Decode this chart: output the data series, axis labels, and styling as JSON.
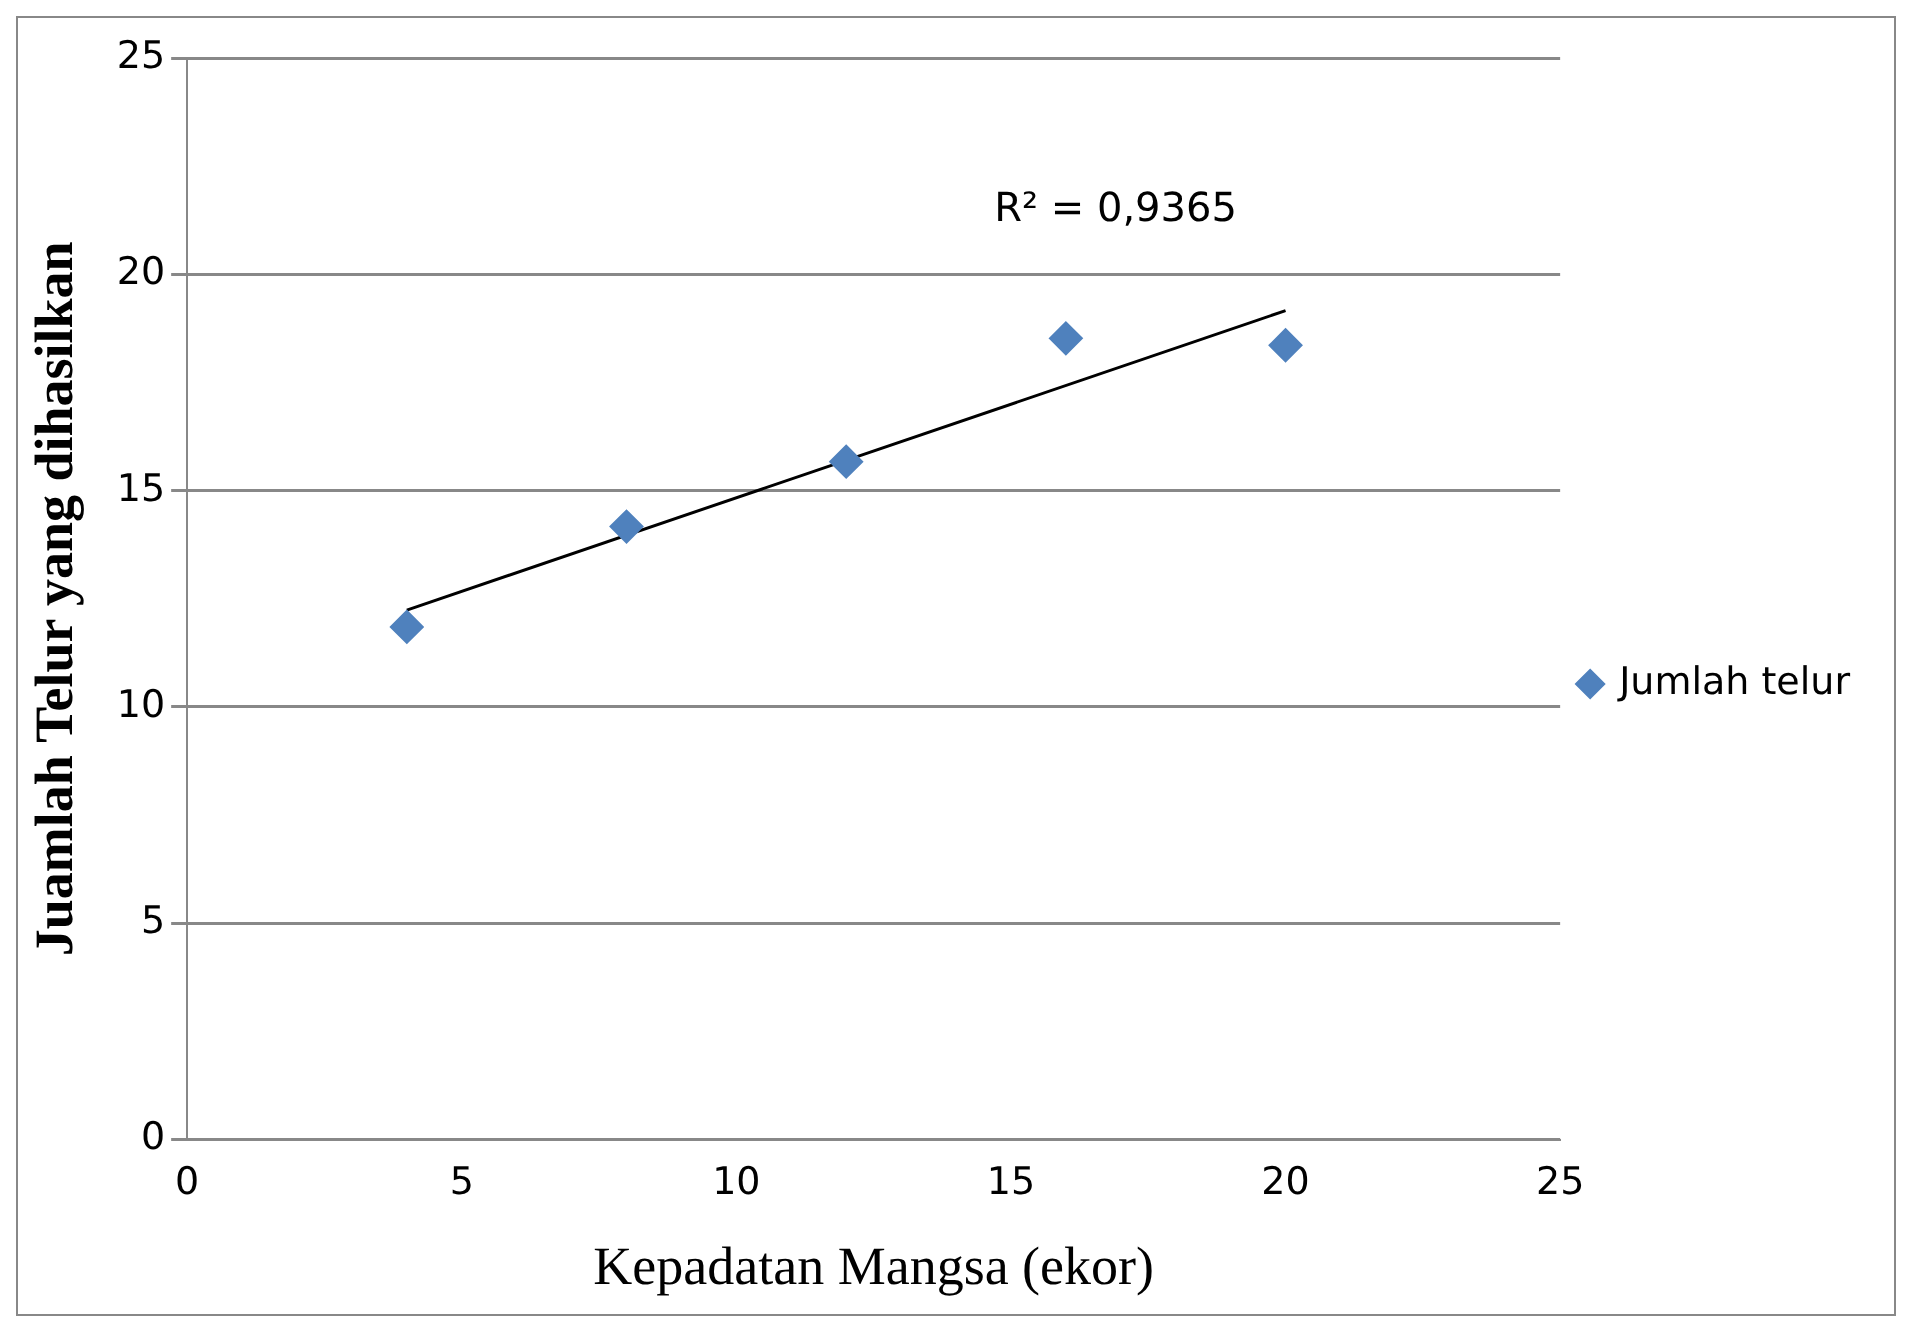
{
  "chart_data": {
    "type": "scatter",
    "xlabel": "Kepadatan Mangsa (ekor)",
    "ylabel": "Juamlah Telur yang dihasilkan",
    "xlim": [
      0,
      25
    ],
    "xticks": [
      0,
      5,
      10,
      15,
      20,
      25
    ],
    "ylim": [
      0,
      25
    ],
    "yticks": [
      0,
      5,
      10,
      15,
      20,
      25
    ],
    "grid": "y",
    "legend": "right",
    "marker": "diamond",
    "series": [
      {
        "name": "Jumlah telur",
        "color": "#4f81bd",
        "x": [
          4,
          8,
          12,
          16,
          20
        ],
        "values": [
          11.85,
          14.17,
          15.67,
          18.52,
          18.36
        ]
      },
      {
        "type": "line",
        "color": "#000000",
        "marker": "none",
        "x": [
          4,
          20
        ],
        "values": [
          12.24,
          19.16
        ]
      }
    ],
    "annotations": [
      "R² = 0,9365"
    ]
  }
}
